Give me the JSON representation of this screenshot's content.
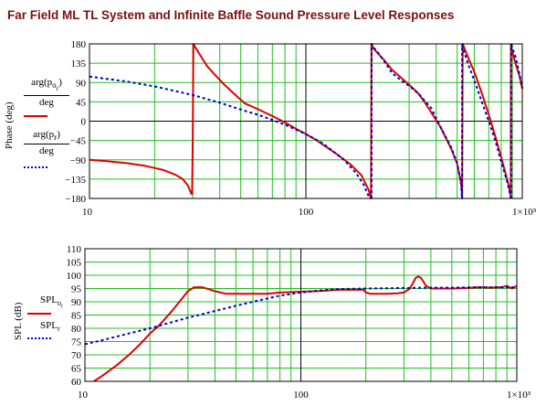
{
  "title": "Far Field ML TL System and Infinite Baffle Sound Pressure Level Responses",
  "colors": {
    "title": "#7a1010",
    "grid": "#20c020",
    "red": "#e00000",
    "blue": "#0000d0"
  },
  "chart_data": [
    {
      "type": "line",
      "x_scale": "log",
      "xlim": [
        10,
        1000
      ],
      "ylim": [
        -180,
        180
      ],
      "x_ticks": [
        "10",
        "100",
        "1×10³"
      ],
      "y_ticks": [
        "180",
        "135",
        "90",
        "45",
        "0",
        "−45",
        "−90",
        "−135",
        "−180"
      ],
      "ylabel": "Phase (deg)",
      "legend": [
        "arg(p_o_r) / deg",
        "arg(p_r) / deg"
      ],
      "grid": true,
      "series": [
        {
          "name": "arg(p_o_r) / deg",
          "color": "#e00000",
          "style": "solid",
          "x": [
            10,
            12,
            15,
            18,
            20,
            22,
            25,
            27,
            28.5,
            29.5,
            29.8,
            30,
            30.2,
            31,
            33,
            35,
            38,
            42,
            47,
            52,
            60,
            70,
            80,
            90,
            100,
            110,
            120,
            140,
            160,
            180,
            195,
            198,
            199,
            200,
            201,
            205,
            215,
            230,
            250,
            280,
            300,
            330,
            350,
            380,
            420,
            470,
            500,
            520,
            525,
            526,
            527,
            530,
            540,
            560,
            600,
            650,
            700,
            750,
            800,
            850,
            870,
            880,
            885,
            886,
            888,
            900,
            930,
            970,
            1000
          ],
          "y": [
            -90,
            -93,
            -98,
            -104,
            -109,
            -114,
            -125,
            -135,
            -150,
            -168,
            -170,
            -40,
            180,
            170,
            148,
            128,
            108,
            85,
            62,
            42,
            28,
            12,
            -3,
            -18,
            -30,
            -42,
            -55,
            -78,
            -100,
            -125,
            -160,
            -172,
            -178,
            -180,
            180,
            170,
            158,
            142,
            120,
            98,
            85,
            65,
            48,
            20,
            -15,
            -65,
            -100,
            -142,
            -160,
            -170,
            -180,
            180,
            170,
            150,
            115,
            65,
            15,
            -35,
            -85,
            -135,
            -155,
            -168,
            -178,
            178,
            170,
            160,
            135,
            105,
            75
          ],
          "note": "phase wraps at ±180"
        },
        {
          "name": "arg(p_r) / deg",
          "color": "#0000d0",
          "style": "dotted",
          "x": [
            10,
            15,
            20,
            25,
            30,
            40,
            50,
            60,
            70,
            80,
            100,
            120,
            150,
            170,
            185,
            195,
            200,
            201,
            205,
            215,
            230,
            250,
            280,
            300,
            330,
            380,
            420,
            470,
            500,
            520,
            526,
            527,
            530,
            540,
            560,
            600,
            650,
            700,
            750,
            800,
            850,
            880,
            886,
            888,
            900,
            930,
            970,
            1000
          ],
          "y": [
            104,
            92,
            81,
            70,
            61,
            43,
            27,
            15,
            3,
            -8,
            -30,
            -52,
            -90,
            -120,
            -148,
            -175,
            -180,
            180,
            172,
            160,
            140,
            112,
            92,
            82,
            65,
            30,
            -15,
            -62,
            -98,
            -140,
            -178,
            178,
            170,
            160,
            135,
            95,
            45,
            0,
            -45,
            -95,
            -140,
            -172,
            -178,
            178,
            170,
            150,
            110,
            78
          ],
          "note": "phase wraps at ±180"
        }
      ]
    },
    {
      "type": "line",
      "x_scale": "log",
      "xlim": [
        10,
        1000
      ],
      "ylim": [
        60,
        110
      ],
      "x_ticks": [
        "10",
        "100",
        "1×10³"
      ],
      "y_ticks": [
        "110",
        "105",
        "100",
        "95",
        "90",
        "85",
        "80",
        "75",
        "70",
        "65",
        "60"
      ],
      "ylabel": "SPL (dB)",
      "legend": [
        "SPL_o_r",
        "SPL_r"
      ],
      "grid": true,
      "series": [
        {
          "name": "SPL_o_r",
          "color": "#e00000",
          "style": "solid",
          "x": [
            11,
            12,
            14,
            16,
            18,
            20,
            22,
            25,
            28,
            30,
            32,
            35,
            40,
            45,
            50,
            60,
            70,
            80,
            100,
            120,
            150,
            180,
            195,
            200,
            210,
            250,
            280,
            300,
            320,
            330,
            340,
            350,
            360,
            380,
            400,
            450,
            500,
            600,
            650,
            700,
            750,
            800,
            850,
            900,
            950,
            1000
          ],
          "y": [
            60,
            62,
            66,
            70,
            74,
            78,
            81,
            86,
            91,
            94,
            95.5,
            95.5,
            94,
            93,
            93,
            93,
            93,
            93.5,
            93.8,
            94,
            94.5,
            94.5,
            94.5,
            93.5,
            93,
            93,
            93.2,
            93.5,
            95,
            97,
            99,
            99.5,
            99,
            96,
            95,
            95,
            95,
            95.2,
            95.5,
            95.5,
            95.3,
            95.5,
            95.5,
            96,
            95,
            96
          ],
          "note": "starts at axis minimum near 11 Hz"
        },
        {
          "name": "SPL_r",
          "color": "#0000d0",
          "style": "dotted",
          "x": [
            10,
            12,
            15,
            20,
            30,
            40,
            50,
            60,
            80,
            100,
            120,
            150,
            200,
            250,
            300,
            400,
            500,
            600,
            700,
            800,
            900,
            1000
          ],
          "y": [
            74,
            75.5,
            77.5,
            80,
            84,
            86.5,
            88.5,
            90,
            92.3,
            93.5,
            94.2,
            94.8,
            95,
            95.1,
            95.2,
            95.3,
            95.3,
            95.4,
            95.4,
            95.4,
            95.4,
            95.5
          ]
        }
      ]
    }
  ]
}
